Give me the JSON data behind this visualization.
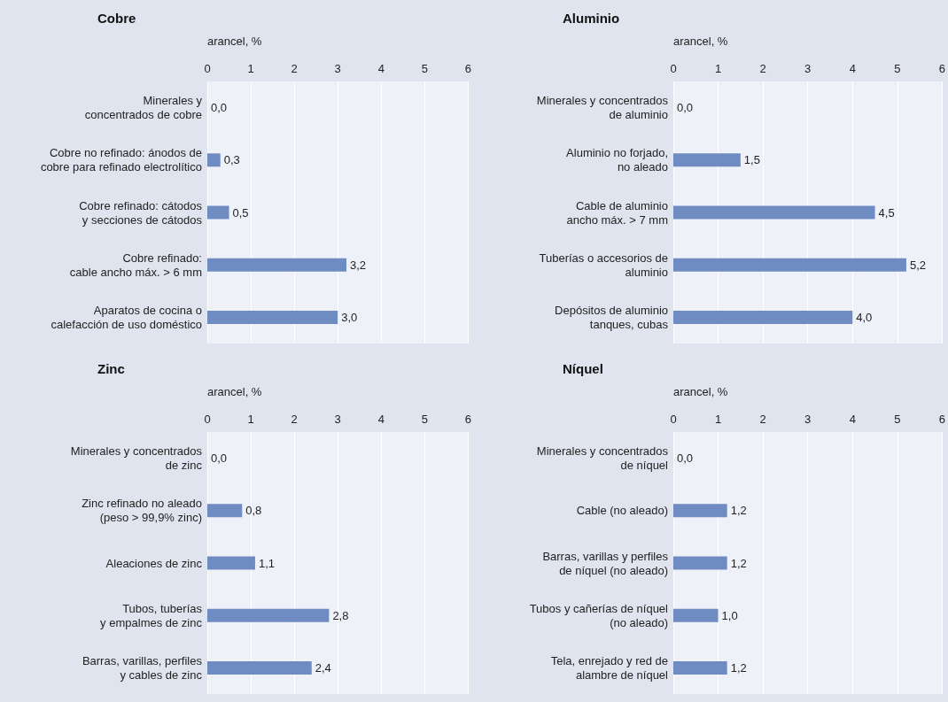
{
  "chart_data": [
    {
      "type": "bar",
      "orientation": "horizontal",
      "title": "Cobre",
      "xlabel": "arancel, %",
      "categories": [
        "Minerales y\nconcentrados de cobre",
        "Cobre no refinado: ánodos de\ncobre para refinado electrolítico",
        "Cobre refinado: cátodos\ny secciones de cátodos",
        "Cobre refinado:\ncable ancho máx. > 6 mm",
        "Aparatos de cocina o\ncalefacción de uso doméstico"
      ],
      "values": [
        0.0,
        0.3,
        0.5,
        3.2,
        3.0
      ],
      "value_labels": [
        "0,0",
        "0,3",
        "0,5",
        "3,2",
        "3,0"
      ],
      "color": "#6f8cc2",
      "xlim": [
        0,
        6
      ],
      "xticks": [
        0,
        1,
        2,
        3,
        4,
        5,
        6
      ],
      "grid": "x"
    },
    {
      "type": "bar",
      "orientation": "horizontal",
      "title": "Aluminio",
      "xlabel": "arancel, %",
      "categories": [
        "Minerales y concentrados\nde aluminio",
        "Aluminio no forjado,\nno aleado",
        "Cable de aluminio\nancho máx. > 7 mm",
        "Tuberías o accesorios de\naluminio",
        "Depósitos de aluminio\ntanques, cubas"
      ],
      "values": [
        0.0,
        1.5,
        4.5,
        5.2,
        4.0
      ],
      "value_labels": [
        "0,0",
        "1,5",
        "4,5",
        "5,2",
        "4,0"
      ],
      "color": "#6f8cc2",
      "xlim": [
        0,
        6
      ],
      "xticks": [
        0,
        1,
        2,
        3,
        4,
        5,
        6
      ],
      "grid": "x"
    },
    {
      "type": "bar",
      "orientation": "horizontal",
      "title": "Zinc",
      "xlabel": "arancel, %",
      "categories": [
        "Minerales y concentrados\nde zinc",
        "Zinc refinado no aleado\n(peso > 99,9% zinc)",
        "Aleaciones de zinc",
        "Tubos, tuberías\ny empalmes de zinc",
        "Barras, varillas, perfiles\ny cables de zinc"
      ],
      "values": [
        0.0,
        0.8,
        1.1,
        2.8,
        2.4
      ],
      "value_labels": [
        "0,0",
        "0,8",
        "1,1",
        "2,8",
        "2,4"
      ],
      "color": "#6f8cc2",
      "xlim": [
        0,
        6
      ],
      "xticks": [
        0,
        1,
        2,
        3,
        4,
        5,
        6
      ],
      "grid": "x"
    },
    {
      "type": "bar",
      "orientation": "horizontal",
      "title": "Níquel",
      "xlabel": "arancel, %",
      "categories": [
        "Minerales y concentrados\nde níquel",
        "Cable (no aleado)",
        "Barras, varillas y perfiles\nde níquel (no aleado)",
        "Tubos y cañerías de níquel\n(no aleado)",
        "Tela, enrejado y red de\nalambre de níquel"
      ],
      "values": [
        0.0,
        1.2,
        1.2,
        1.0,
        1.2
      ],
      "value_labels": [
        "0,0",
        "1,2",
        "1,2",
        "1,0",
        "1,2"
      ],
      "color": "#6f8cc2",
      "xlim": [
        0,
        6
      ],
      "xticks": [
        0,
        1,
        2,
        3,
        4,
        5,
        6
      ],
      "grid": "x"
    }
  ]
}
